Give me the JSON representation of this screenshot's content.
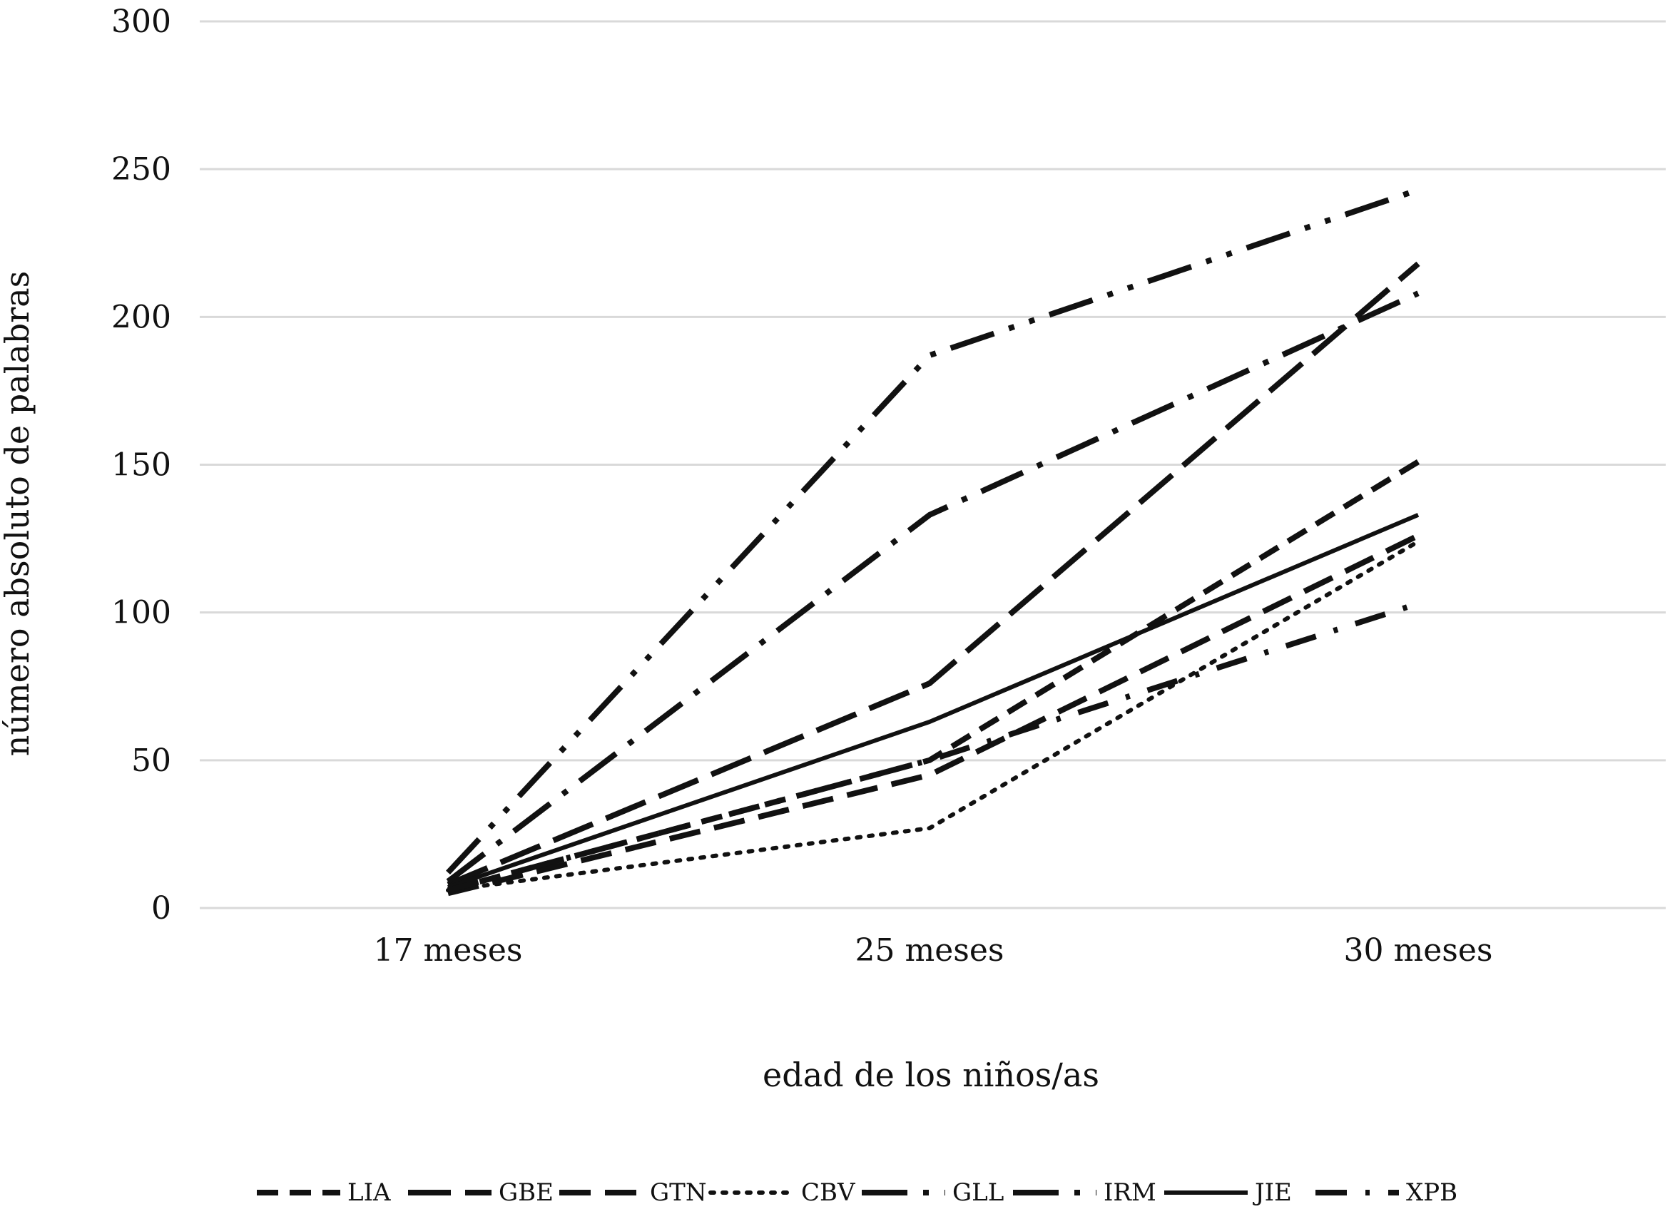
{
  "chart_data": {
    "type": "line",
    "title": "",
    "xlabel": "edad de los niños/as",
    "ylabel": "número absoluto de palabras",
    "categories": [
      "17 meses",
      "25 meses",
      "30 meses"
    ],
    "ylim": [
      0,
      300
    ],
    "yticks": [
      0,
      50,
      100,
      150,
      200,
      250,
      300
    ],
    "grid": "horizontal",
    "legend_position": "bottom",
    "series": [
      {
        "name": "LIA",
        "style": "short-dash",
        "values": [
          6,
          50,
          151
        ]
      },
      {
        "name": "GBE",
        "style": "long-dash",
        "values": [
          8,
          76,
          218
        ]
      },
      {
        "name": "GTN",
        "style": "dash",
        "values": [
          5,
          45,
          126
        ]
      },
      {
        "name": "CBV",
        "style": "dot",
        "values": [
          6,
          27,
          124
        ]
      },
      {
        "name": "GLL",
        "style": "long-dash-dot",
        "values": [
          9,
          133,
          208
        ]
      },
      {
        "name": "IRM",
        "style": "long-dash-dot-dot",
        "values": [
          12,
          187,
          243
        ]
      },
      {
        "name": "JIE",
        "style": "solid",
        "values": [
          7,
          63,
          133
        ]
      },
      {
        "name": "XPB",
        "style": "dash-dot",
        "values": [
          6,
          50,
          103
        ]
      }
    ],
    "colors": {
      "line": "#111111",
      "grid": "#d9d9d9",
      "text": "#111111"
    }
  }
}
